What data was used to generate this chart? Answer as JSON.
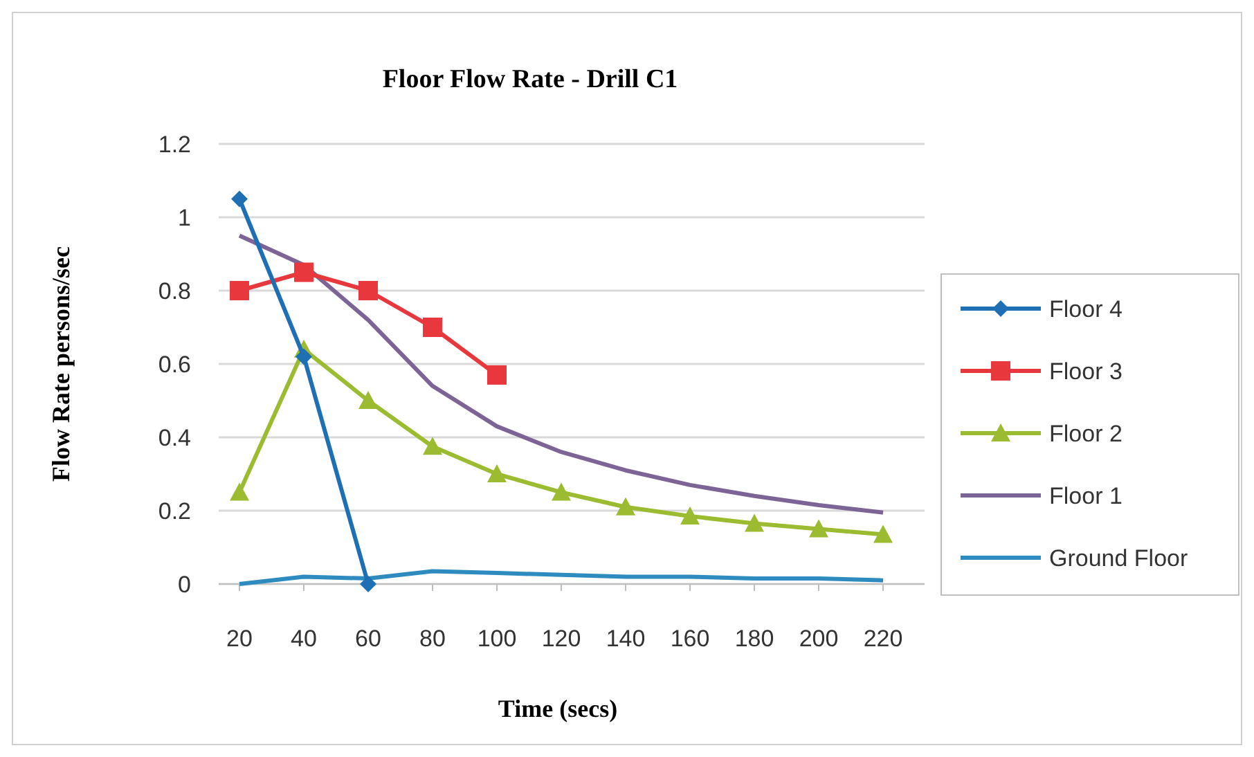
{
  "chart_data": {
    "type": "line",
    "title": "Floor Flow Rate - Drill C1",
    "xlabel": "Time (secs)",
    "ylabel": "Flow Rate persons/sec",
    "categories": [
      "20",
      "40",
      "60",
      "80",
      "100",
      "120",
      "140",
      "160",
      "180",
      "200",
      "220"
    ],
    "series": [
      {
        "name": "Floor 4",
        "color": "#1f6fb4",
        "marker": "diamond",
        "values": [
          1.05,
          0.62,
          0,
          null,
          null,
          null,
          null,
          null,
          null,
          null,
          null
        ]
      },
      {
        "name": "Floor 3",
        "color": "#e8383d",
        "marker": "square",
        "values": [
          0.8,
          0.85,
          0.8,
          0.7,
          0.57,
          null,
          null,
          null,
          null,
          null,
          null
        ]
      },
      {
        "name": "Floor 2",
        "color": "#9bbb30",
        "marker": "triangle",
        "values": [
          0.25,
          0.64,
          0.5,
          0.375,
          0.3,
          0.25,
          0.21,
          0.185,
          0.165,
          0.15,
          0.135
        ]
      },
      {
        "name": "Floor 1",
        "color": "#7d6496",
        "marker": "none",
        "values": [
          0.95,
          0.87,
          0.72,
          0.54,
          0.43,
          0.36,
          0.31,
          0.27,
          0.24,
          0.215,
          0.195
        ]
      },
      {
        "name": "Ground Floor",
        "color": "#2e8bc0",
        "marker": "none",
        "values": [
          0,
          0.02,
          0.015,
          0.035,
          0.03,
          0.025,
          0.02,
          0.02,
          0.015,
          0.015,
          0.01
        ]
      }
    ],
    "ylim": [
      0,
      1.2
    ],
    "yticks": [
      0,
      0.2,
      0.4,
      0.6,
      0.8,
      1,
      1.2
    ],
    "grid": "y",
    "legend": "right"
  }
}
